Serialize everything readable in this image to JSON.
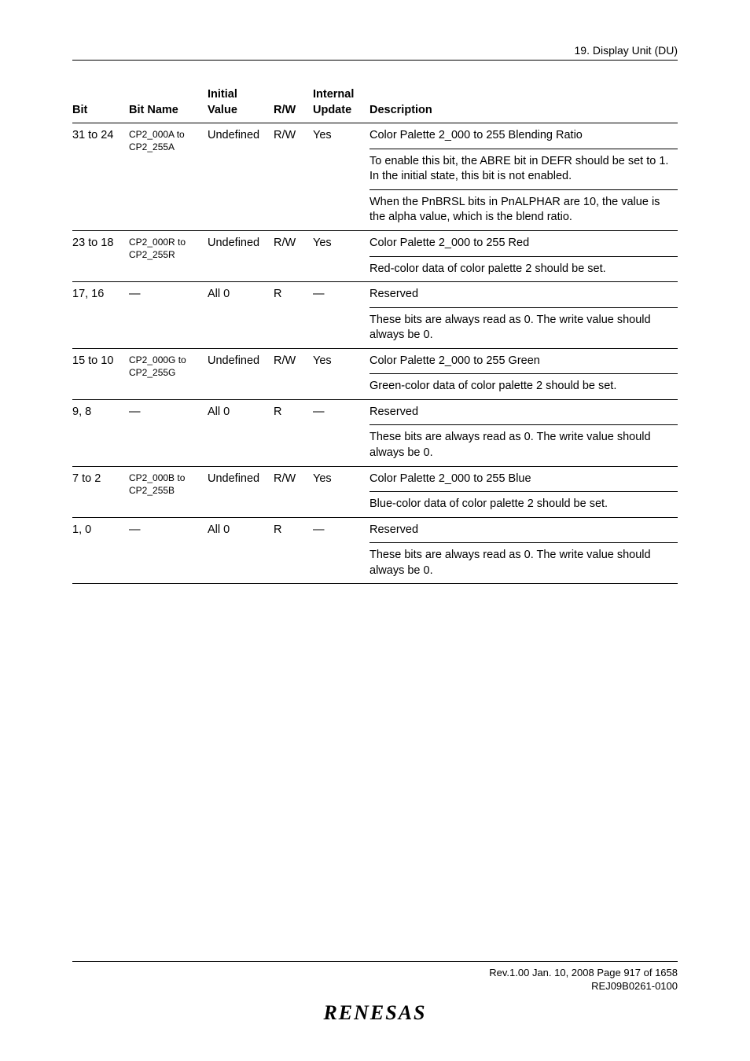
{
  "header": {
    "section": "19.   Display Unit (DU)"
  },
  "table": {
    "columns": {
      "bit": "Bit",
      "bit_name": "Bit Name",
      "initial_value_l1": "Initial",
      "initial_value_l2": "Value",
      "rw": "R/W",
      "internal_l1": "Internal",
      "internal_l2": "Update",
      "description": "Description"
    },
    "rows": [
      {
        "bit": "31 to 24",
        "name_l1": "CP2_000A to",
        "name_l2": "CP2_255A",
        "initial": "Undefined",
        "rw": "R/W",
        "update": "Yes",
        "desc": [
          "Color Palette 2_000 to 255 Blending Ratio",
          "To enable this bit, the ABRE bit in DEFR should be set to 1. In the initial state, this bit is not enabled.",
          "When the PnBRSL bits in PnALPHAR are 10, the value is the alpha value, which is the blend ratio."
        ]
      },
      {
        "bit": "23 to 18",
        "name_l1": "CP2_000R to",
        "name_l2": "CP2_255R",
        "initial": "Undefined",
        "rw": "R/W",
        "update": "Yes",
        "desc": [
          "Color Palette 2_000 to 255 Red",
          "Red-color data of color palette 2 should be set."
        ]
      },
      {
        "bit": "17, 16",
        "name_l1": "—",
        "name_l2": "",
        "initial": "All 0",
        "rw": "R",
        "update": "—",
        "desc": [
          "Reserved",
          "These bits are always read as 0. The write value should always be 0."
        ]
      },
      {
        "bit": "15 to 10",
        "name_l1": "CP2_000G to",
        "name_l2": "CP2_255G",
        "initial": "Undefined",
        "rw": "R/W",
        "update": "Yes",
        "desc": [
          "Color Palette 2_000 to 255 Green",
          "Green-color data of color palette 2 should be set."
        ]
      },
      {
        "bit": "9, 8",
        "name_l1": "—",
        "name_l2": "",
        "initial": "All 0",
        "rw": "R",
        "update": "—",
        "desc": [
          "Reserved",
          "These bits are always read as 0. The write value should always be 0."
        ]
      },
      {
        "bit": "7 to 2",
        "name_l1": "CP2_000B to",
        "name_l2": "CP2_255B",
        "initial": "Undefined",
        "rw": "R/W",
        "update": "Yes",
        "desc": [
          "Color Palette 2_000 to 255 Blue",
          "Blue-color data of color palette 2 should be set."
        ]
      },
      {
        "bit": "1, 0",
        "name_l1": "—",
        "name_l2": "",
        "initial": "All 0",
        "rw": "R",
        "update": "—",
        "desc": [
          "Reserved",
          "These bits are always read as 0. The write value should always be 0."
        ]
      }
    ]
  },
  "footer": {
    "line1": "Rev.1.00  Jan. 10, 2008  Page 917 of 1658",
    "line2": "REJ09B0261-0100",
    "logo": "RENESAS"
  }
}
